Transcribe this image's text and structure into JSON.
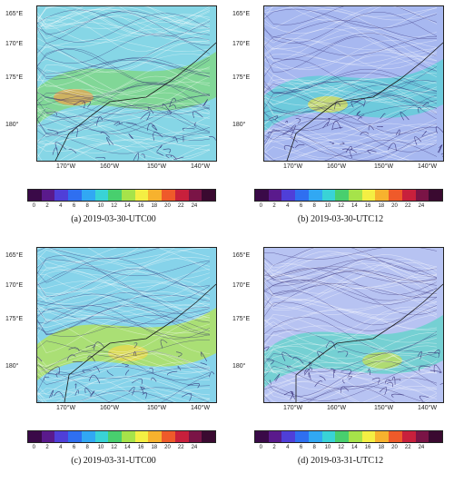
{
  "colorbar": {
    "ticks": [
      "0",
      "2",
      "4",
      "6",
      "8",
      "10",
      "12",
      "14",
      "16",
      "18",
      "20",
      "22",
      "24"
    ],
    "colors": [
      "#3a0a48",
      "#5a1a8c",
      "#4f3fd8",
      "#2f6ff0",
      "#31a8f3",
      "#39d3d6",
      "#48cf6e",
      "#a6e34a",
      "#f4ef43",
      "#f7b22e",
      "#ef5a2a",
      "#c8203c",
      "#7a1446",
      "#3a0a30"
    ]
  },
  "panels": [
    {
      "caption": "(a) 2019-03-30-UTC00",
      "lat_labels": [
        "165°E",
        "170°E",
        "175°E",
        "180°"
      ],
      "lon_labels": [
        "170°W",
        "160°W",
        "150°W",
        "140°W"
      ],
      "palette": {
        "base": "#86d6e6",
        "band": "#7fd77c",
        "hot": "#f0a24a",
        "line": "#2a1f6b"
      }
    },
    {
      "caption": "(b) 2019-03-30-UTC12",
      "lat_labels": [
        "165°E",
        "170°E",
        "175°E",
        "180°"
      ],
      "lon_labels": [
        "170°W",
        "160°W",
        "150°W",
        "140°W"
      ],
      "palette": {
        "base": "#a7b8f0",
        "band": "#59d0d6",
        "hot": "#e8e04a",
        "line": "#2a1f6b"
      }
    },
    {
      "caption": "(c) 2019-03-31-UTC00",
      "lat_labels": [
        "165°E",
        "170°E",
        "175°E",
        "180°"
      ],
      "lon_labels": [
        "170°W",
        "160°W",
        "150°W",
        "140°W"
      ],
      "palette": {
        "base": "#86d3ea",
        "band": "#b6e34e",
        "hot": "#f0d848",
        "line": "#2a1f6b"
      }
    },
    {
      "caption": "(d) 2019-03-31-UTC12",
      "lat_labels": [
        "165°E",
        "170°E",
        "175°E",
        "180°"
      ],
      "lon_labels": [
        "170°W",
        "160°W",
        "150°W",
        "140°W"
      ],
      "palette": {
        "base": "#b7c3f2",
        "band": "#5fd4c8",
        "hot": "#c8e04a",
        "line": "#2a1f6b"
      }
    }
  ]
}
